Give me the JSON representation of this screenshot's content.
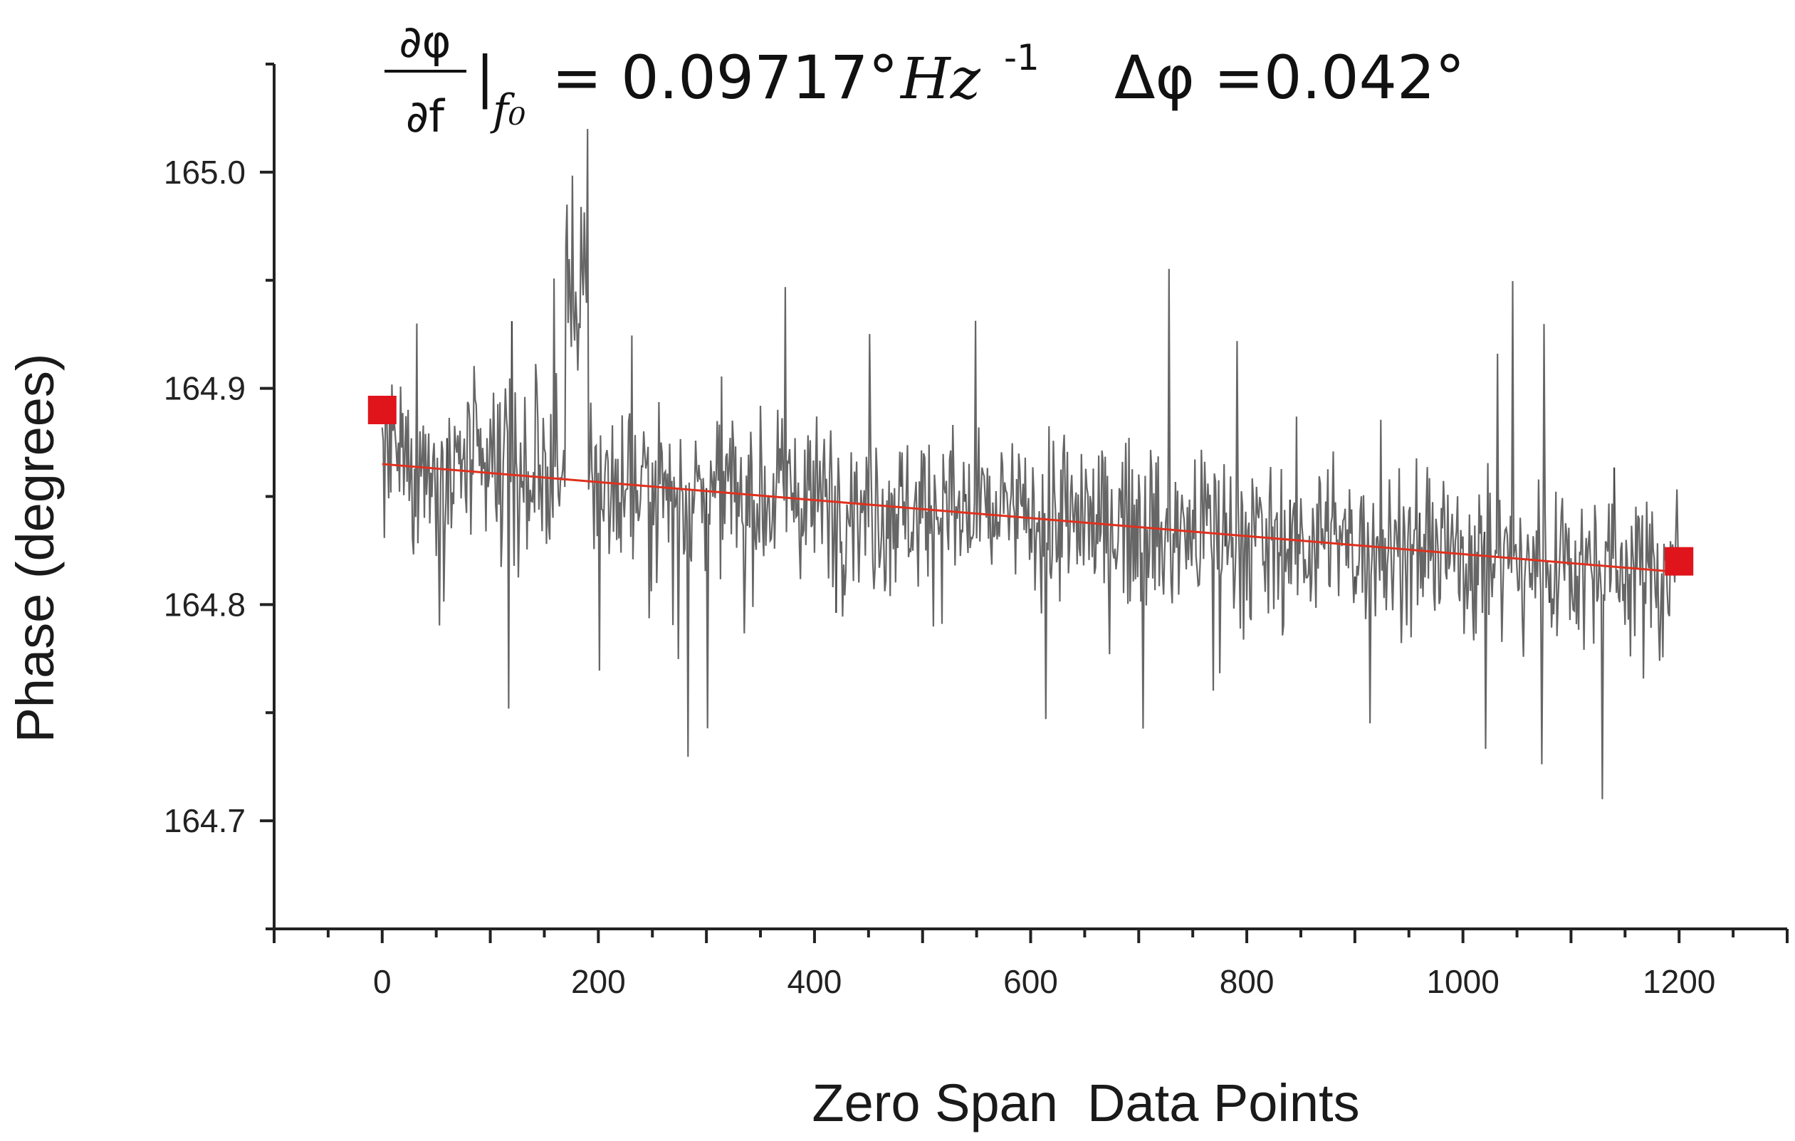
{
  "chart_data": {
    "type": "line",
    "xlabel": "Zero Span  Data Points",
    "ylabel": "Phase (degrees)",
    "xlim": [
      -100,
      1300
    ],
    "ylim": [
      164.65,
      165.05
    ],
    "x_ticks": [
      0,
      200,
      400,
      600,
      800,
      1000,
      1200
    ],
    "y_ticks": [
      164.7,
      164.8,
      164.9,
      165.0
    ],
    "grid": false,
    "annotation": {
      "derivative_numerator": "∂φ",
      "derivative_denominator": "∂f",
      "evaluated_at": "|",
      "subscript": "f₀",
      "equals_value": "= 0.09717°",
      "unit": "Hz",
      "exponent": "-1",
      "delta_label": "Δφ =0.042°"
    },
    "noise_trace": {
      "color": "#333333",
      "x_range": [
        0,
        1200
      ],
      "mean_start": 164.865,
      "mean_end": 164.815,
      "approx_min": 164.71,
      "approx_max": 165.02
    },
    "fit_line": {
      "color": "#e0301e",
      "points": [
        {
          "x": 0,
          "y": 164.865
        },
        {
          "x": 1200,
          "y": 164.815
        }
      ]
    },
    "markers": {
      "color": "#e0141b",
      "shape": "square",
      "points": [
        {
          "x": 0,
          "y": 164.89
        },
        {
          "x": 1200,
          "y": 164.82
        }
      ]
    }
  }
}
